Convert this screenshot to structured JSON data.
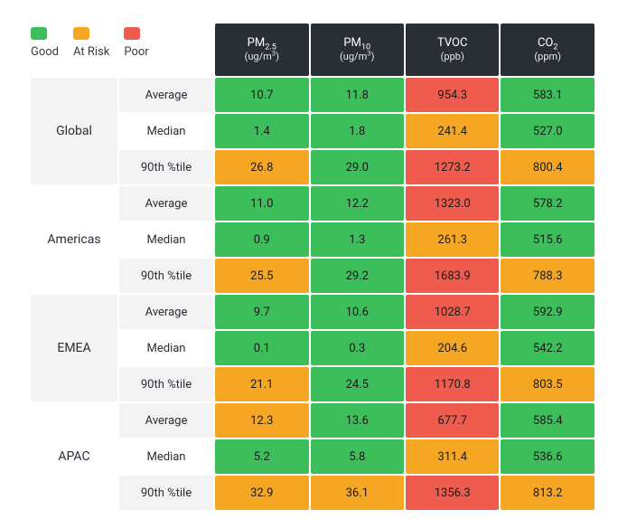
{
  "type": "table",
  "background_color": "#ffffff",
  "header_bg": "#2a2f36",
  "header_fg": "#ffffff",
  "row_bg_a": "#f3f3f3",
  "row_bg_b": "#ffffff",
  "font_size_header": 13,
  "font_size_cell": 13,
  "status_colors": {
    "good": "#3cbf5a",
    "atrisk": "#f5a623",
    "poor": "#ef5b4c"
  },
  "legend": [
    {
      "label": "Good",
      "color": "#3cbf5a"
    },
    {
      "label": "At Risk",
      "color": "#f5a623"
    },
    {
      "label": "Poor",
      "color": "#ef5b4c"
    }
  ],
  "metrics": [
    {
      "name_html": "PM<sub>2.5</sub>",
      "unit_html": "(ug/m<sup>3</sup>)"
    },
    {
      "name_html": "PM<sub>10</sub>",
      "unit_html": "(ug/m<sup>3</sup>)"
    },
    {
      "name_html": "TVOC",
      "unit_html": "(ppb)"
    },
    {
      "name_html": "CO<sub>2</sub>",
      "unit_html": "(ppm)"
    }
  ],
  "stat_labels": [
    "Average",
    "Median",
    "90th %tile"
  ],
  "regions": [
    {
      "name": "Global",
      "rows": [
        {
          "values": [
            "10.7",
            "11.8",
            "954.3",
            "583.1"
          ],
          "status": [
            "good",
            "good",
            "poor",
            "good"
          ]
        },
        {
          "values": [
            "1.4",
            "1.8",
            "241.4",
            "527.0"
          ],
          "status": [
            "good",
            "good",
            "atrisk",
            "good"
          ]
        },
        {
          "values": [
            "26.8",
            "29.0",
            "1273.2",
            "800.4"
          ],
          "status": [
            "atrisk",
            "good",
            "poor",
            "atrisk"
          ]
        }
      ]
    },
    {
      "name": "Americas",
      "rows": [
        {
          "values": [
            "11.0",
            "12.2",
            "1323.0",
            "578.2"
          ],
          "status": [
            "good",
            "good",
            "poor",
            "good"
          ]
        },
        {
          "values": [
            "0.9",
            "1.3",
            "261.3",
            "515.6"
          ],
          "status": [
            "good",
            "good",
            "atrisk",
            "good"
          ]
        },
        {
          "values": [
            "25.5",
            "29.2",
            "1683.9",
            "788.3"
          ],
          "status": [
            "atrisk",
            "good",
            "poor",
            "atrisk"
          ]
        }
      ]
    },
    {
      "name": "EMEA",
      "rows": [
        {
          "values": [
            "9.7",
            "10.6",
            "1028.7",
            "592.9"
          ],
          "status": [
            "good",
            "good",
            "poor",
            "good"
          ]
        },
        {
          "values": [
            "0.1",
            "0.3",
            "204.6",
            "542.2"
          ],
          "status": [
            "good",
            "good",
            "atrisk",
            "good"
          ]
        },
        {
          "values": [
            "21.1",
            "24.5",
            "1170.8",
            "803.5"
          ],
          "status": [
            "atrisk",
            "good",
            "poor",
            "atrisk"
          ]
        }
      ]
    },
    {
      "name": "APAC",
      "rows": [
        {
          "values": [
            "12.3",
            "13.6",
            "677.7",
            "585.4"
          ],
          "status": [
            "atrisk",
            "good",
            "poor",
            "good"
          ]
        },
        {
          "values": [
            "5.2",
            "5.8",
            "311.4",
            "536.6"
          ],
          "status": [
            "good",
            "good",
            "atrisk",
            "good"
          ]
        },
        {
          "values": [
            "32.9",
            "36.1",
            "1356.3",
            "813.2"
          ],
          "status": [
            "atrisk",
            "atrisk",
            "poor",
            "atrisk"
          ]
        }
      ]
    }
  ]
}
